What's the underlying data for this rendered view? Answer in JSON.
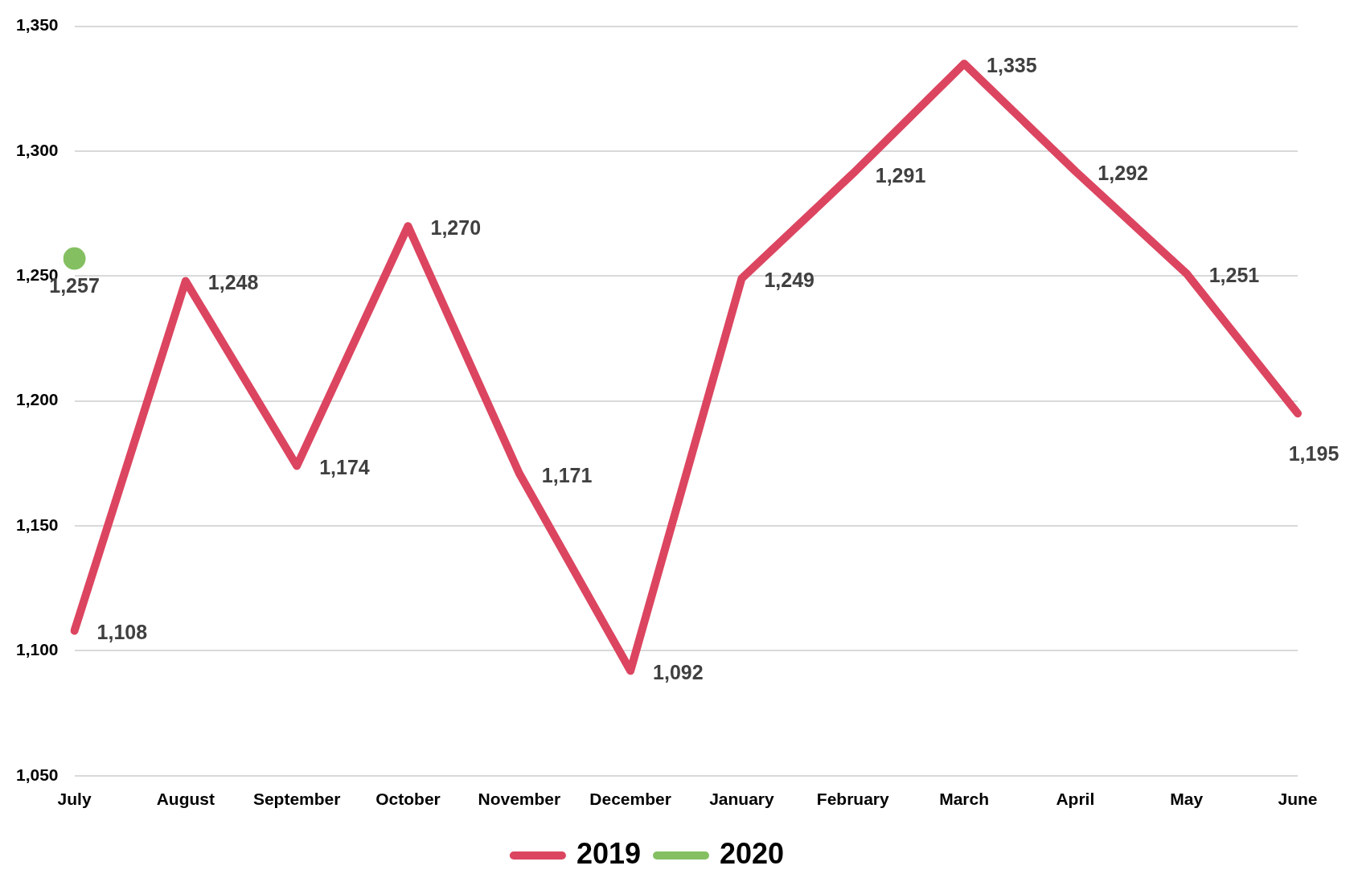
{
  "chart_data": {
    "type": "line",
    "categories": [
      "July",
      "August",
      "September",
      "October",
      "November",
      "December",
      "January",
      "February",
      "March",
      "April",
      "May",
      "June"
    ],
    "series": [
      {
        "name": "2019",
        "color": "#dc4560",
        "marker": "none",
        "values": [
          1108,
          1248,
          1174,
          1270,
          1171,
          1092,
          1249,
          1291,
          1335,
          1292,
          1251,
          1195
        ],
        "value_labels": [
          "1,108",
          "1,248",
          "1,174",
          "1,270",
          "1,171",
          "1,092",
          "1,249",
          "1,291",
          "1,335",
          "1,292",
          "1,251",
          "1,195"
        ]
      },
      {
        "name": "2020",
        "color": "#84c062",
        "marker": "circle",
        "values": [
          1257,
          null,
          null,
          null,
          null,
          null,
          null,
          null,
          null,
          null,
          null,
          null
        ],
        "value_labels": [
          "1,257",
          null,
          null,
          null,
          null,
          null,
          null,
          null,
          null,
          null,
          null,
          null
        ]
      }
    ],
    "ylim": [
      1050,
      1350
    ],
    "yticks": [
      {
        "value": 1050,
        "label": "1,050"
      },
      {
        "value": 1100,
        "label": "1,100"
      },
      {
        "value": 1150,
        "label": "1,150"
      },
      {
        "value": 1200,
        "label": "1,200"
      },
      {
        "value": 1250,
        "label": "1,250"
      },
      {
        "value": 1300,
        "label": "1,300"
      },
      {
        "value": 1350,
        "label": "1,350"
      }
    ],
    "grid": "y",
    "legend": "bottom",
    "line_style": "solid"
  }
}
